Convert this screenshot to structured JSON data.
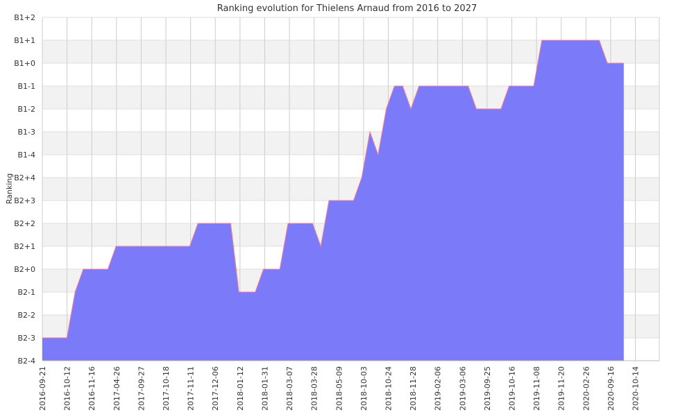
{
  "chart_data": {
    "type": "area",
    "title": "Ranking evolution for Thielens Arnaud from 2016 to 2027",
    "xlabel": "",
    "ylabel": "Ranking",
    "y_ticks": [
      "B2-4",
      "B2-3",
      "B2-2",
      "B2-1",
      "B2+0",
      "B2+1",
      "B2+2",
      "B2+3",
      "B2+4",
      "B1-4",
      "B1-3",
      "B1-2",
      "B1-1",
      "B1+0",
      "B1+1",
      "B1+2"
    ],
    "ylim": [
      "B2-4",
      "B1+2"
    ],
    "x_ticks": [
      "2016-09-21",
      "2016-10-12",
      "2016-11-16",
      "2017-04-26",
      "2017-09-27",
      "2017-10-18",
      "2017-11-11",
      "2017-12-06",
      "2018-01-12",
      "2018-01-31",
      "2018-03-07",
      "2018-03-28",
      "2018-05-09",
      "2018-10-03",
      "2018-10-24",
      "2018-11-28",
      "2019-02-06",
      "2019-03-06",
      "2019-09-25",
      "2019-10-16",
      "2019-11-08",
      "2019-11-20",
      "2020-02-26",
      "2020-09-16",
      "2020-10-14"
    ],
    "grid": true,
    "fill_color": "#7b7bfa",
    "line_color": "#ff7f7f",
    "series": [
      {
        "name": "",
        "values": [
          "B2-3",
          "B2-3",
          "B2-3",
          "B2-3",
          "B2-1",
          "B2+0",
          "B2+0",
          "B2+0",
          "B2+0",
          "B2+1",
          "B2+1",
          "B2+1",
          "B2+1",
          "B2+1",
          "B2+1",
          "B2+1",
          "B2+1",
          "B2+1",
          "B2+1",
          "B2+2",
          "B2+2",
          "B2+2",
          "B2+2",
          "B2+2",
          "B2-1",
          "B2-1",
          "B2-1",
          "B2+0",
          "B2+0",
          "B2+0",
          "B2+2",
          "B2+2",
          "B2+2",
          "B2+2",
          "B2+1",
          "B2+3",
          "B2+3",
          "B2+3",
          "B2+3",
          "B2+4",
          "B1-3",
          "B1-4",
          "B1-2",
          "B1-1",
          "B1-1",
          "B1-2",
          "B1-1",
          "B1-1",
          "B1-1",
          "B1-1",
          "B1-1",
          "B1-1",
          "B1-1",
          "B1-2",
          "B1-2",
          "B1-2",
          "B1-2",
          "B1-1",
          "B1-1",
          "B1-1",
          "B1-1",
          "B1+1",
          "B1+1",
          "B1+1",
          "B1+1",
          "B1+1",
          "B1+1",
          "B1+1",
          "B1+1",
          "B1+0",
          "B1+0",
          "B1+0"
        ]
      }
    ]
  }
}
